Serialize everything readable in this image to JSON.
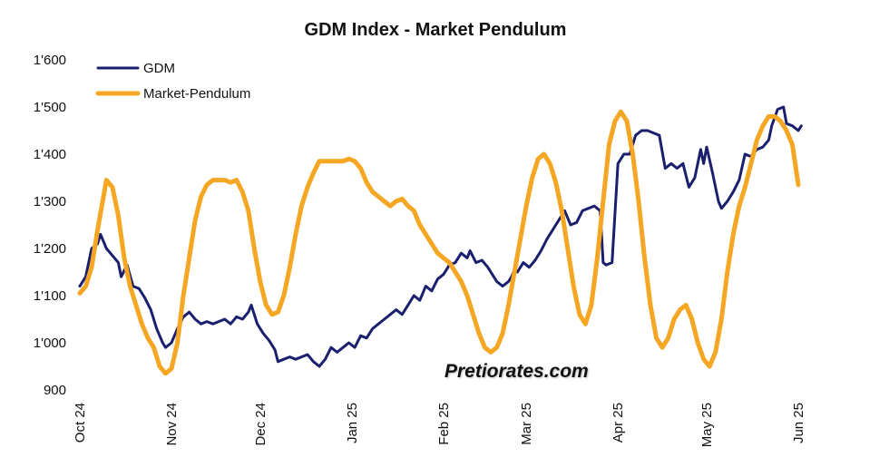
{
  "chart_data": {
    "type": "line",
    "title": "GDM Index - Market Pendulum",
    "watermark": "Pretiorates.com",
    "ylim": [
      900,
      1600
    ],
    "y_ticks": [
      "900",
      "1'000",
      "1'100",
      "1'200",
      "1'300",
      "1'400",
      "1'500",
      "1'600"
    ],
    "y_tick_values": [
      900,
      1000,
      1100,
      1200,
      1300,
      1400,
      1500,
      1600
    ],
    "x_tick_labels": [
      "Oct 24",
      "Nov 24",
      "Dec 24",
      "Jan 25",
      "Feb 25",
      "Mar 25",
      "Apr 25",
      "May 25",
      "Jun 25"
    ],
    "x_tick_dates": [
      "2024-10-01",
      "2024-11-01",
      "2024-12-01",
      "2025-01-01",
      "2025-02-01",
      "2025-03-01",
      "2025-04-01",
      "2025-05-01",
      "2025-06-01"
    ],
    "xlim": [
      "2024-10-01",
      "2025-06-01"
    ],
    "grid": false,
    "legend_position": "top-left",
    "series": [
      {
        "name": "GDM",
        "color": "#1a1f6e",
        "points": [
          [
            "2024-10-01",
            1120
          ],
          [
            "2024-10-03",
            1140
          ],
          [
            "2024-10-05",
            1200
          ],
          [
            "2024-10-07",
            1210
          ],
          [
            "2024-10-08",
            1230
          ],
          [
            "2024-10-10",
            1200
          ],
          [
            "2024-10-12",
            1185
          ],
          [
            "2024-10-14",
            1170
          ],
          [
            "2024-10-15",
            1140
          ],
          [
            "2024-10-17",
            1165
          ],
          [
            "2024-10-19",
            1120
          ],
          [
            "2024-10-21",
            1115
          ],
          [
            "2024-10-23",
            1095
          ],
          [
            "2024-10-25",
            1070
          ],
          [
            "2024-10-27",
            1030
          ],
          [
            "2024-10-29",
            1000
          ],
          [
            "2024-10-30",
            990
          ],
          [
            "2024-11-01",
            1000
          ],
          [
            "2024-11-03",
            1030
          ],
          [
            "2024-11-05",
            1055
          ],
          [
            "2024-11-07",
            1065
          ],
          [
            "2024-11-09",
            1050
          ],
          [
            "2024-11-11",
            1040
          ],
          [
            "2024-11-13",
            1045
          ],
          [
            "2024-11-15",
            1040
          ],
          [
            "2024-11-17",
            1045
          ],
          [
            "2024-11-19",
            1050
          ],
          [
            "2024-11-21",
            1040
          ],
          [
            "2024-11-23",
            1055
          ],
          [
            "2024-11-25",
            1050
          ],
          [
            "2024-11-27",
            1065
          ],
          [
            "2024-11-28",
            1080
          ],
          [
            "2024-11-30",
            1040
          ],
          [
            "2024-12-02",
            1020
          ],
          [
            "2024-12-04",
            1005
          ],
          [
            "2024-12-06",
            985
          ],
          [
            "2024-12-07",
            960
          ],
          [
            "2024-12-09",
            965
          ],
          [
            "2024-12-11",
            970
          ],
          [
            "2024-12-13",
            965
          ],
          [
            "2024-12-15",
            970
          ],
          [
            "2024-12-17",
            975
          ],
          [
            "2024-12-19",
            960
          ],
          [
            "2024-12-21",
            950
          ],
          [
            "2024-12-23",
            965
          ],
          [
            "2024-12-25",
            990
          ],
          [
            "2024-12-27",
            980
          ],
          [
            "2024-12-29",
            990
          ],
          [
            "2024-12-31",
            1000
          ],
          [
            "2025-01-02",
            990
          ],
          [
            "2025-01-04",
            1015
          ],
          [
            "2025-01-06",
            1010
          ],
          [
            "2025-01-08",
            1030
          ],
          [
            "2025-01-10",
            1040
          ],
          [
            "2025-01-12",
            1050
          ],
          [
            "2025-01-14",
            1060
          ],
          [
            "2025-01-16",
            1070
          ],
          [
            "2025-01-18",
            1060
          ],
          [
            "2025-01-20",
            1080
          ],
          [
            "2025-01-22",
            1100
          ],
          [
            "2025-01-24",
            1090
          ],
          [
            "2025-01-26",
            1120
          ],
          [
            "2025-01-28",
            1110
          ],
          [
            "2025-01-30",
            1135
          ],
          [
            "2025-02-01",
            1145
          ],
          [
            "2025-02-03",
            1165
          ],
          [
            "2025-02-05",
            1170
          ],
          [
            "2025-02-07",
            1190
          ],
          [
            "2025-02-09",
            1180
          ],
          [
            "2025-02-10",
            1195
          ],
          [
            "2025-02-12",
            1170
          ],
          [
            "2025-02-14",
            1175
          ],
          [
            "2025-02-16",
            1160
          ],
          [
            "2025-02-18",
            1140
          ],
          [
            "2025-02-19",
            1130
          ],
          [
            "2025-02-21",
            1120
          ],
          [
            "2025-02-23",
            1130
          ],
          [
            "2025-02-24",
            1140
          ],
          [
            "2025-02-25",
            1155
          ],
          [
            "2025-02-26",
            1150
          ],
          [
            "2025-02-28",
            1170
          ],
          [
            "2025-03-02",
            1160
          ],
          [
            "2025-03-04",
            1175
          ],
          [
            "2025-03-06",
            1195
          ],
          [
            "2025-03-08",
            1220
          ],
          [
            "2025-03-10",
            1240
          ],
          [
            "2025-03-12",
            1260
          ],
          [
            "2025-03-14",
            1280
          ],
          [
            "2025-03-16",
            1250
          ],
          [
            "2025-03-18",
            1255
          ],
          [
            "2025-03-20",
            1280
          ],
          [
            "2025-03-22",
            1285
          ],
          [
            "2025-03-24",
            1290
          ],
          [
            "2025-03-26",
            1280
          ],
          [
            "2025-03-27",
            1170
          ],
          [
            "2025-03-28",
            1165
          ],
          [
            "2025-03-30",
            1170
          ],
          [
            "2025-04-01",
            1380
          ],
          [
            "2025-04-03",
            1400
          ],
          [
            "2025-04-05",
            1400
          ],
          [
            "2025-04-07",
            1440
          ],
          [
            "2025-04-09",
            1450
          ],
          [
            "2025-04-11",
            1450
          ],
          [
            "2025-04-13",
            1445
          ],
          [
            "2025-04-15",
            1440
          ],
          [
            "2025-04-17",
            1370
          ],
          [
            "2025-04-19",
            1380
          ],
          [
            "2025-04-21",
            1370
          ],
          [
            "2025-04-23",
            1380
          ],
          [
            "2025-04-25",
            1330
          ],
          [
            "2025-04-27",
            1350
          ],
          [
            "2025-04-29",
            1410
          ],
          [
            "2025-04-30",
            1380
          ],
          [
            "2025-05-01",
            1415
          ],
          [
            "2025-05-03",
            1360
          ],
          [
            "2025-05-05",
            1300
          ],
          [
            "2025-05-06",
            1285
          ],
          [
            "2025-05-08",
            1300
          ],
          [
            "2025-05-10",
            1320
          ],
          [
            "2025-05-12",
            1345
          ],
          [
            "2025-05-14",
            1400
          ],
          [
            "2025-05-16",
            1395
          ],
          [
            "2025-05-18",
            1410
          ],
          [
            "2025-05-20",
            1415
          ],
          [
            "2025-05-22",
            1430
          ],
          [
            "2025-05-23",
            1460
          ],
          [
            "2025-05-25",
            1495
          ],
          [
            "2025-05-27",
            1500
          ],
          [
            "2025-05-28",
            1465
          ],
          [
            "2025-05-30",
            1460
          ],
          [
            "2025-06-01",
            1450
          ],
          [
            "2025-06-02",
            1460
          ]
        ]
      },
      {
        "name": "Market-Pendulum",
        "color": "#f5a623",
        "points": [
          [
            "2024-10-01",
            1105
          ],
          [
            "2024-10-03",
            1120
          ],
          [
            "2024-10-05",
            1160
          ],
          [
            "2024-10-07",
            1240
          ],
          [
            "2024-10-09",
            1310
          ],
          [
            "2024-10-10",
            1345
          ],
          [
            "2024-10-12",
            1330
          ],
          [
            "2024-10-14",
            1270
          ],
          [
            "2024-10-16",
            1180
          ],
          [
            "2024-10-18",
            1120
          ],
          [
            "2024-10-20",
            1080
          ],
          [
            "2024-10-22",
            1040
          ],
          [
            "2024-10-24",
            1010
          ],
          [
            "2024-10-26",
            990
          ],
          [
            "2024-10-28",
            950
          ],
          [
            "2024-10-30",
            935
          ],
          [
            "2024-11-01",
            945
          ],
          [
            "2024-11-03",
            1000
          ],
          [
            "2024-11-05",
            1100
          ],
          [
            "2024-11-07",
            1180
          ],
          [
            "2024-11-09",
            1260
          ],
          [
            "2024-11-11",
            1310
          ],
          [
            "2024-11-13",
            1335
          ],
          [
            "2024-11-15",
            1345
          ],
          [
            "2024-11-17",
            1345
          ],
          [
            "2024-11-19",
            1345
          ],
          [
            "2024-11-21",
            1340
          ],
          [
            "2024-11-23",
            1345
          ],
          [
            "2024-11-25",
            1320
          ],
          [
            "2024-11-27",
            1280
          ],
          [
            "2024-11-29",
            1200
          ],
          [
            "2024-12-01",
            1130
          ],
          [
            "2024-12-03",
            1080
          ],
          [
            "2024-12-05",
            1060
          ],
          [
            "2024-12-07",
            1065
          ],
          [
            "2024-12-09",
            1100
          ],
          [
            "2024-12-11",
            1160
          ],
          [
            "2024-12-13",
            1230
          ],
          [
            "2024-12-15",
            1290
          ],
          [
            "2024-12-17",
            1330
          ],
          [
            "2024-12-19",
            1360
          ],
          [
            "2024-12-21",
            1385
          ],
          [
            "2024-12-23",
            1385
          ],
          [
            "2024-12-25",
            1385
          ],
          [
            "2024-12-27",
            1385
          ],
          [
            "2024-12-29",
            1385
          ],
          [
            "2024-12-31",
            1390
          ],
          [
            "2025-01-02",
            1385
          ],
          [
            "2025-01-04",
            1370
          ],
          [
            "2025-01-06",
            1340
          ],
          [
            "2025-01-08",
            1320
          ],
          [
            "2025-01-10",
            1310
          ],
          [
            "2025-01-12",
            1300
          ],
          [
            "2025-01-14",
            1290
          ],
          [
            "2025-01-16",
            1300
          ],
          [
            "2025-01-18",
            1305
          ],
          [
            "2025-01-20",
            1290
          ],
          [
            "2025-01-22",
            1280
          ],
          [
            "2025-01-24",
            1250
          ],
          [
            "2025-01-26",
            1230
          ],
          [
            "2025-01-28",
            1210
          ],
          [
            "2025-01-30",
            1190
          ],
          [
            "2025-02-01",
            1180
          ],
          [
            "2025-02-03",
            1170
          ],
          [
            "2025-02-05",
            1150
          ],
          [
            "2025-02-07",
            1130
          ],
          [
            "2025-02-09",
            1100
          ],
          [
            "2025-02-11",
            1060
          ],
          [
            "2025-02-13",
            1020
          ],
          [
            "2025-02-15",
            990
          ],
          [
            "2025-02-17",
            980
          ],
          [
            "2025-02-19",
            990
          ],
          [
            "2025-02-21",
            1020
          ],
          [
            "2025-02-23",
            1080
          ],
          [
            "2025-02-25",
            1150
          ],
          [
            "2025-02-27",
            1220
          ],
          [
            "2025-03-01",
            1290
          ],
          [
            "2025-03-03",
            1350
          ],
          [
            "2025-03-05",
            1390
          ],
          [
            "2025-03-07",
            1400
          ],
          [
            "2025-03-09",
            1380
          ],
          [
            "2025-03-11",
            1340
          ],
          [
            "2025-03-13",
            1280
          ],
          [
            "2025-03-15",
            1200
          ],
          [
            "2025-03-17",
            1120
          ],
          [
            "2025-03-19",
            1060
          ],
          [
            "2025-03-21",
            1040
          ],
          [
            "2025-03-23",
            1080
          ],
          [
            "2025-03-25",
            1180
          ],
          [
            "2025-03-27",
            1300
          ],
          [
            "2025-03-29",
            1420
          ],
          [
            "2025-03-31",
            1470
          ],
          [
            "2025-04-02",
            1490
          ],
          [
            "2025-04-04",
            1470
          ],
          [
            "2025-04-06",
            1400
          ],
          [
            "2025-04-08",
            1300
          ],
          [
            "2025-04-10",
            1180
          ],
          [
            "2025-04-12",
            1080
          ],
          [
            "2025-04-14",
            1010
          ],
          [
            "2025-04-16",
            990
          ],
          [
            "2025-04-18",
            1010
          ],
          [
            "2025-04-20",
            1050
          ],
          [
            "2025-04-22",
            1070
          ],
          [
            "2025-04-24",
            1080
          ],
          [
            "2025-04-26",
            1050
          ],
          [
            "2025-04-28",
            1000
          ],
          [
            "2025-04-30",
            965
          ],
          [
            "2025-05-02",
            950
          ],
          [
            "2025-05-04",
            980
          ],
          [
            "2025-05-06",
            1050
          ],
          [
            "2025-05-08",
            1150
          ],
          [
            "2025-05-10",
            1230
          ],
          [
            "2025-05-12",
            1290
          ],
          [
            "2025-05-14",
            1330
          ],
          [
            "2025-05-16",
            1380
          ],
          [
            "2025-05-18",
            1430
          ],
          [
            "2025-05-20",
            1460
          ],
          [
            "2025-05-22",
            1480
          ],
          [
            "2025-05-24",
            1480
          ],
          [
            "2025-05-26",
            1470
          ],
          [
            "2025-05-28",
            1450
          ],
          [
            "2025-05-30",
            1420
          ],
          [
            "2025-06-01",
            1335
          ]
        ]
      }
    ]
  }
}
